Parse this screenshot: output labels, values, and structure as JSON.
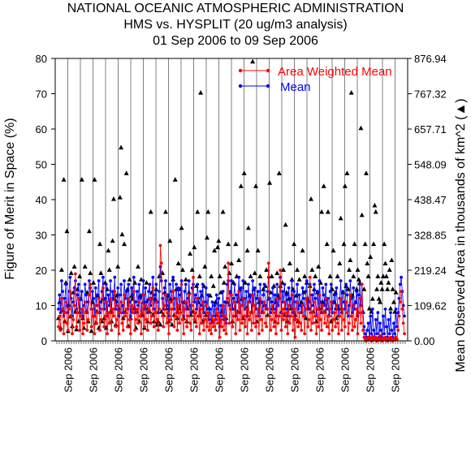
{
  "chart_data": {
    "type": "line",
    "title_lines": [
      "NATIONAL OCEANIC ATMOSPHERIC ADMINISTRATION",
      "HMS vs. HYSPLIT (20 ug/m3 analysis)",
      "01 Sep 2006 to 09 Sep 2006"
    ],
    "ylabel_left": "Figure of Merit in Space (%)",
    "ylabel_right": "Mean Observed Area in thousands of km^2 (▲)",
    "ylim_left": [
      0,
      80
    ],
    "yticks_left": [
      "0",
      "10",
      "20",
      "30",
      "40",
      "50",
      "60",
      "70",
      "80"
    ],
    "ylim_right": [
      0,
      876.94
    ],
    "yticks_right": [
      "0.00",
      "109.62",
      "219.24",
      "328.85",
      "438.47",
      "548.09",
      "657.71",
      "767.32",
      "876.94"
    ],
    "x_tick_labels": [
      "Sep 2006",
      "Sep 2006",
      "Sep 2006",
      "Sep 2006",
      "Sep 2006",
      "Sep 2006",
      "Sep 2006",
      "Sep 2006",
      "Sep 2006",
      "Sep 2006",
      "Sep 2006",
      "Sep 2006",
      "Sep 2006",
      "Sep 2006"
    ],
    "grid": "vertical",
    "legend_position": "top-right",
    "colors": {
      "awm": "#ff0000",
      "mean": "#0000ff",
      "area": "#000000",
      "grid": "#808080"
    },
    "series": [
      {
        "name": "Area Weighted Mean",
        "marker": "circle",
        "values": [
          4,
          7,
          3,
          12,
          9,
          2,
          8,
          11,
          5,
          3,
          9,
          14,
          7,
          2,
          6,
          10,
          19,
          4,
          8,
          12,
          3,
          7,
          9,
          2,
          5,
          11,
          8,
          3,
          6,
          13,
          16,
          4,
          9,
          7,
          2,
          10,
          5,
          8,
          12,
          3,
          6,
          9,
          15,
          4,
          7,
          11,
          2,
          8,
          5,
          12,
          3,
          9,
          7,
          14,
          4,
          6,
          10,
          2,
          8,
          11,
          5,
          3,
          13,
          7,
          9,
          4,
          12,
          6,
          2,
          10,
          8,
          14,
          3,
          6,
          9,
          5,
          11,
          7,
          2,
          8,
          13,
          4,
          10,
          6,
          3,
          9,
          12,
          5,
          7,
          15,
          4,
          8,
          11,
          6,
          3,
          9,
          27,
          22,
          7,
          4,
          10,
          13,
          5,
          8,
          2,
          11,
          6,
          9,
          14,
          4,
          7,
          12,
          3,
          10,
          5,
          8,
          16,
          6,
          2,
          9,
          11,
          4,
          7,
          13,
          5,
          3,
          10,
          18,
          6,
          8,
          4,
          12,
          7,
          2,
          9,
          5,
          11,
          3,
          6,
          10,
          4,
          8,
          3,
          5,
          2,
          7,
          4,
          6,
          3,
          9,
          5,
          8,
          1,
          6,
          4,
          10,
          3,
          7,
          2,
          12,
          22,
          5,
          9,
          13,
          4,
          7,
          11,
          2,
          8,
          6,
          14,
          3,
          10,
          5,
          12,
          7,
          4,
          9,
          2,
          11,
          6,
          8,
          3,
          13,
          5,
          10,
          4,
          7,
          9,
          2,
          12,
          6,
          3,
          8,
          11,
          5,
          4,
          9,
          22,
          7,
          3,
          6,
          10,
          4,
          8,
          2,
          12,
          5,
          7,
          20,
          3,
          9,
          6,
          11,
          4,
          8,
          2,
          10,
          5,
          7,
          13,
          3,
          9,
          1,
          6,
          11,
          4,
          8,
          5,
          3,
          10,
          7,
          2,
          9,
          12,
          4,
          6,
          18,
          3,
          8,
          5,
          11,
          7,
          2,
          9,
          4,
          13,
          6,
          3,
          10,
          8,
          5,
          12,
          4,
          7,
          2,
          9,
          11,
          3,
          6,
          8,
          4,
          10,
          5,
          2,
          7,
          12,
          3,
          9,
          6,
          4,
          11,
          8,
          2,
          5,
          13,
          7,
          3,
          10,
          4,
          6,
          9,
          2,
          8,
          12,
          5,
          16,
          3,
          1,
          0.5,
          0,
          0.5,
          1,
          0.3,
          0.8,
          0,
          1.2,
          0.5,
          0.3,
          1,
          0,
          0.6,
          0.2,
          1.5,
          0.4,
          0,
          0.8,
          0.3,
          1,
          0.5,
          0,
          0.7,
          0.2,
          1,
          0.4,
          0,
          0.6,
          0.3,
          1.1,
          0.5,
          3,
          7,
          11,
          14,
          9,
          5,
          2
        ]
      },
      {
        "name": "Mean",
        "marker": "circle",
        "values": [
          9,
          13,
          8,
          17,
          14,
          7,
          12,
          16,
          10,
          8,
          14,
          18,
          12,
          7,
          11,
          15,
          17,
          9,
          13,
          16,
          8,
          12,
          14,
          7,
          10,
          16,
          13,
          8,
          11,
          17,
          15,
          9,
          14,
          12,
          7,
          15,
          10,
          13,
          17,
          8,
          11,
          14,
          18,
          9,
          12,
          16,
          7,
          13,
          10,
          17,
          8,
          14,
          12,
          18,
          9,
          11,
          15,
          7,
          13,
          16,
          10,
          8,
          17,
          12,
          14,
          9,
          16,
          11,
          7,
          15,
          13,
          18,
          8,
          11,
          14,
          10,
          16,
          12,
          7,
          13,
          17,
          9,
          15,
          11,
          8,
          14,
          16,
          10,
          12,
          18,
          9,
          13,
          16,
          11,
          8,
          14,
          21,
          17,
          12,
          9,
          15,
          17,
          10,
          13,
          7,
          16,
          11,
          14,
          18,
          9,
          12,
          16,
          8,
          15,
          10,
          13,
          17,
          11,
          7,
          14,
          16,
          9,
          12,
          17,
          10,
          8,
          15,
          16,
          11,
          13,
          9,
          16,
          12,
          7,
          14,
          10,
          16,
          8,
          11,
          15,
          9,
          13,
          6,
          9,
          5,
          11,
          7,
          10,
          6,
          13,
          9,
          12,
          4,
          10,
          7,
          14,
          6,
          11,
          5,
          16,
          17,
          10,
          14,
          17,
          9,
          12,
          16,
          7,
          13,
          11,
          18,
          8,
          15,
          10,
          17,
          12,
          9,
          14,
          7,
          16,
          11,
          13,
          8,
          17,
          10,
          15,
          9,
          12,
          14,
          7,
          16,
          11,
          8,
          13,
          16,
          10,
          9,
          14,
          18,
          12,
          8,
          11,
          15,
          9,
          13,
          7,
          16,
          10,
          12,
          18,
          8,
          14,
          11,
          16,
          9,
          13,
          7,
          15,
          10,
          12,
          17,
          8,
          14,
          6,
          11,
          16,
          9,
          13,
          10,
          8,
          15,
          12,
          7,
          14,
          17,
          9,
          11,
          16,
          8,
          13,
          10,
          16,
          12,
          7,
          14,
          9,
          17,
          11,
          8,
          15,
          13,
          10,
          16,
          9,
          12,
          7,
          14,
          16,
          8,
          11,
          13,
          9,
          15,
          10,
          7,
          12,
          17,
          8,
          14,
          11,
          9,
          16,
          13,
          7,
          10,
          17,
          12,
          8,
          15,
          9,
          11,
          14,
          7,
          13,
          16,
          10,
          16,
          8,
          4,
          2,
          1,
          3,
          5,
          1,
          7,
          2,
          9,
          3,
          1,
          6,
          2,
          8,
          1,
          5,
          3,
          1,
          7,
          2,
          9,
          4,
          1,
          6,
          2,
          8,
          3,
          1,
          5,
          2,
          9,
          4,
          8,
          12,
          16,
          18,
          14,
          10,
          7
        ]
      },
      {
        "name": "Mean Observed Area",
        "marker": "triangle",
        "values": [
          70,
          120,
          40,
          220,
          95,
          500,
          60,
          180,
          340,
          30,
          110,
          75,
          210,
          45,
          150,
          230,
          90,
          35,
          160,
          60,
          200,
          130,
          500,
          70,
          40,
          230,
          90,
          150,
          60,
          340,
          210,
          30,
          120,
          180,
          500,
          55,
          90,
          140,
          40,
          300,
          210,
          60,
          130,
          70,
          180,
          40,
          160,
          280,
          220,
          90,
          60,
          310,
          440,
          130,
          50,
          140,
          230,
          100,
          445,
          600,
          330,
          70,
          300,
          90,
          520,
          160,
          45,
          190,
          70,
          140,
          130,
          100,
          180,
          40,
          90,
          230,
          60,
          140,
          190,
          80,
          120,
          40,
          100,
          180,
          60,
          130,
          90,
          400,
          150,
          80,
          60,
          130,
          160,
          50,
          60,
          200,
          50,
          90,
          210,
          80,
          150,
          400,
          100,
          140,
          60,
          310,
          130,
          50,
          190,
          80,
          500,
          160,
          70,
          240,
          100,
          160,
          350,
          220,
          70,
          120,
          190,
          60,
          100,
          150,
          270,
          80,
          220,
          90,
          290,
          60,
          170,
          400,
          120,
          200,
          770,
          140,
          60,
          170,
          230,
          80,
          320,
          400,
          100,
          140,
          200,
          60,
          170,
          280,
          120,
          80,
          290,
          310,
          200,
          150,
          90,
          400,
          180,
          230,
          70,
          120,
          300,
          210,
          150,
          240,
          60,
          180,
          100,
          300,
          200,
          90,
          250,
          160,
          480,
          130,
          70,
          520,
          180,
          100,
          280,
          350,
          140,
          200,
          90,
          880,
          160,
          210,
          480,
          60,
          280,
          120,
          200,
          120,
          90,
          160,
          110,
          170,
          220,
          80,
          130,
          490,
          150,
          200,
          100,
          170,
          60,
          120,
          210,
          140,
          520,
          170,
          90,
          180,
          220,
          80,
          360,
          150,
          60,
          130,
          240,
          100,
          190,
          160,
          300,
          80,
          140,
          220,
          60,
          190,
          110,
          120,
          280,
          150,
          200,
          70,
          180,
          130,
          100,
          170,
          440,
          220,
          90,
          160,
          200,
          60,
          150,
          230,
          100,
          180,
          400,
          120,
          480,
          90,
          130,
          300,
          400,
          80,
          200,
          60,
          160,
          280,
          120,
          150,
          70,
          200,
          100,
          240,
          380,
          100,
          150,
          300,
          480,
          170,
          520,
          160,
          220,
          250,
          770,
          140,
          200,
          300,
          120,
          160,
          220,
          190,
          180,
          660,
          390,
          90,
          160,
          300,
          520,
          240,
          200,
          100,
          260,
          90,
          130,
          300,
          420,
          400,
          160,
          200,
          130,
          120,
          180,
          160,
          200,
          300,
          240,
          200,
          160,
          180,
          220,
          100,
          250,
          160,
          120,
          90,
          150
        ]
      }
    ]
  }
}
